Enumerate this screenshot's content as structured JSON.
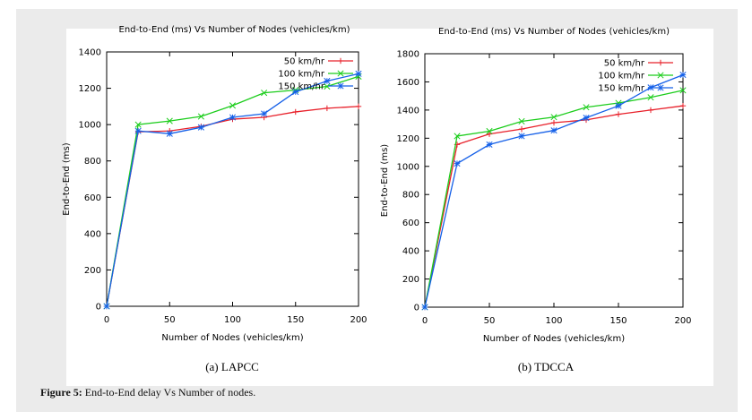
{
  "figure_caption": {
    "label": "Figure 5:",
    "text": "End-to-End delay Vs Number of nodes."
  },
  "colors": {
    "series_50": "#e8202a",
    "series_100": "#1ccd1c",
    "series_150": "#1560e8"
  },
  "chart_data": [
    {
      "type": "line",
      "caption": "(a) LAPCC",
      "title": "End-to-End (ms) Vs Number of Nodes (vehicles/km)",
      "xlabel": "Number of Nodes (vehicles/km)",
      "ylabel": "End-to-End (ms)",
      "xlim": [
        0,
        200
      ],
      "ylim": [
        0,
        1400
      ],
      "xticks": [
        0,
        50,
        100,
        150,
        200
      ],
      "yticks": [
        0,
        200,
        400,
        600,
        800,
        1000,
        1200,
        1400
      ],
      "grid": false,
      "legend_position": "top-right",
      "series": [
        {
          "name": "50 km/hr",
          "marker": "plus",
          "x": [
            0,
            25,
            50,
            75,
            100,
            125,
            150,
            175,
            200
          ],
          "y": [
            0,
            960,
            965,
            990,
            1030,
            1040,
            1070,
            1090,
            1100
          ]
        },
        {
          "name": "100 km/hr",
          "marker": "x",
          "x": [
            0,
            25,
            50,
            75,
            100,
            125,
            150,
            175,
            200
          ],
          "y": [
            0,
            1000,
            1020,
            1045,
            1105,
            1175,
            1190,
            1210,
            1265
          ]
        },
        {
          "name": "150 km/hr",
          "marker": "star",
          "x": [
            0,
            25,
            50,
            75,
            100,
            125,
            150,
            175,
            200
          ],
          "y": [
            0,
            965,
            950,
            985,
            1040,
            1060,
            1180,
            1240,
            1280
          ]
        }
      ]
    },
    {
      "type": "line",
      "caption": "(b) TDCCA",
      "title": "End-to-End (ms) Vs Number of Nodes (vehicles/km)",
      "xlabel": "Number of Nodes (vehicles/km)",
      "ylabel": "End-to-End (ms)",
      "xlim": [
        0,
        200
      ],
      "ylim": [
        0,
        1800
      ],
      "xticks": [
        0,
        50,
        100,
        150,
        200
      ],
      "yticks": [
        0,
        200,
        400,
        600,
        800,
        1000,
        1200,
        1400,
        1600,
        1800
      ],
      "grid": false,
      "legend_position": "top-right",
      "series": [
        {
          "name": "50 km/hr",
          "marker": "plus",
          "x": [
            0,
            25,
            50,
            75,
            100,
            125,
            150,
            175,
            200
          ],
          "y": [
            0,
            1155,
            1230,
            1265,
            1310,
            1330,
            1370,
            1400,
            1430
          ]
        },
        {
          "name": "100 km/hr",
          "marker": "x",
          "x": [
            0,
            25,
            50,
            75,
            100,
            125,
            150,
            175,
            200
          ],
          "y": [
            0,
            1215,
            1250,
            1320,
            1350,
            1420,
            1450,
            1490,
            1540
          ]
        },
        {
          "name": "150 km/hr",
          "marker": "star",
          "x": [
            0,
            25,
            50,
            75,
            100,
            125,
            150,
            175,
            200
          ],
          "y": [
            0,
            1020,
            1155,
            1215,
            1255,
            1345,
            1430,
            1560,
            1650
          ]
        }
      ]
    }
  ]
}
